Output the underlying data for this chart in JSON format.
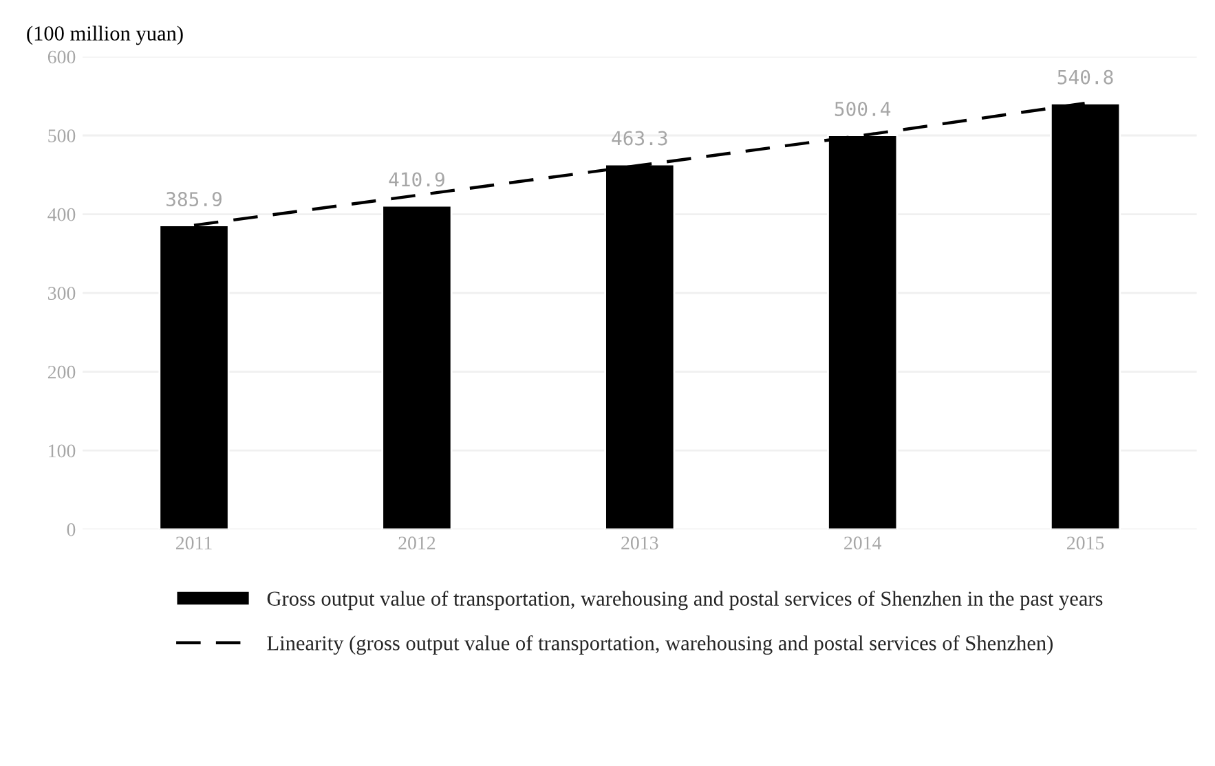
{
  "chart_data": {
    "type": "bar",
    "ylabel": "(100 million yuan)",
    "categories": [
      "2011",
      "2012",
      "2013",
      "2014",
      "2015"
    ],
    "series": [
      {
        "name": "Gross output value of transportation, warehousing and postal services of Shenzhen in the past years",
        "color": "#000000",
        "values": [
          385.9,
          410.9,
          463.3,
          500.4,
          540.8
        ],
        "value_labels": [
          "385.9",
          "410.9",
          "463.3",
          "500.4",
          "540.8"
        ]
      },
      {
        "type": "line",
        "name": "Linearity (gross output value of transportation, warehousing and postal services of Shenzhen)",
        "color": "#000000",
        "line_style": "dashed",
        "values": [
          386,
          424,
          462,
          500,
          541
        ]
      }
    ],
    "ylim": [
      0,
      600
    ],
    "yticks": [
      0,
      100,
      200,
      300,
      400,
      500,
      600
    ],
    "grid": "y",
    "legend": "bottom"
  }
}
